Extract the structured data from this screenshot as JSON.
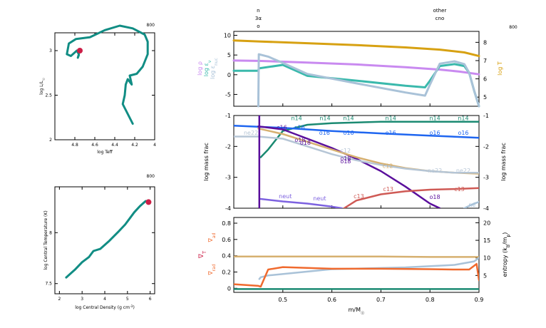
{
  "step_labels": {
    "hr": "800",
    "center": "800",
    "profile": "800"
  },
  "colors": {
    "teal": "#118d84",
    "red": "#cc1f47",
    "gold": "#d7a112",
    "lilac": "#c98af0",
    "lightteal": "#3ab9ac",
    "steel": "#a9c2d8",
    "green": "#1b8a72",
    "blue": "#1f66f0",
    "purple": "#5a0f9c",
    "tan": "#d6b070",
    "grayblue": "#b6c6d6",
    "neut": "#7d62e0",
    "c13": "#cf5a55",
    "orange": "#f06a2e",
    "gridgray": "#8a8a8a"
  },
  "chart_data": [
    {
      "type": "line",
      "id": "hr",
      "xlabel": "log Teff",
      "ylabel": "log L/L",
      "ylabel_sub": "☉",
      "xlim": [
        4.0,
        5.0
      ],
      "ylim": [
        2.0,
        3.2
      ],
      "x_reversed": true,
      "xticks": [
        {
          "v": 4.8,
          "label": "4.8"
        },
        {
          "v": 4.6,
          "label": "4.6"
        },
        {
          "v": 4.4,
          "label": "4.4"
        },
        {
          "v": 4.2,
          "label": "4.2"
        },
        {
          "v": 4.0,
          "label": "4"
        }
      ],
      "yticks": [
        {
          "v": 2.0,
          "label": "2"
        },
        {
          "v": 2.5,
          "label": "2.5"
        },
        {
          "v": 3.0,
          "label": "3"
        }
      ],
      "series": [
        {
          "color": "teal",
          "x": [
            4.22,
            4.32,
            4.3,
            4.29,
            4.27,
            4.23,
            4.25,
            4.18,
            4.12,
            4.07,
            4.07,
            4.1,
            4.22,
            4.35,
            4.5,
            4.65,
            4.79,
            4.86,
            4.88,
            4.84,
            4.78,
            4.76,
            4.77,
            4.76
          ],
          "y": [
            2.18,
            2.4,
            2.5,
            2.62,
            2.68,
            2.62,
            2.72,
            2.74,
            2.82,
            2.96,
            3.1,
            3.18,
            3.25,
            3.28,
            3.23,
            3.15,
            3.13,
            3.08,
            2.96,
            2.94,
            3.0,
            2.96,
            2.92,
            2.95
          ]
        }
      ],
      "marker": {
        "x": 4.75,
        "y": 3.0,
        "color": "red"
      }
    },
    {
      "type": "line",
      "id": "center",
      "xlabel": "log Central Density (g cm",
      "xlabel_sup": "-3",
      "xlabel_end": ")",
      "ylabel": "log Central Temperature (K)",
      "xlim": [
        1.8,
        6.2
      ],
      "ylim": [
        7.4,
        8.45
      ],
      "xticks": [
        {
          "v": 2,
          "label": "2"
        },
        {
          "v": 3,
          "label": "3"
        },
        {
          "v": 4,
          "label": "4"
        },
        {
          "v": 5,
          "label": "5"
        },
        {
          "v": 6,
          "label": "6"
        }
      ],
      "yticks": [
        {
          "v": 7.5,
          "label": "7.5"
        },
        {
          "v": 8.0,
          "label": "8"
        }
      ],
      "series": [
        {
          "color": "teal",
          "x": [
            2.3,
            2.7,
            3.0,
            3.3,
            3.5,
            3.8,
            4.2,
            4.6,
            4.9,
            5.1,
            5.3,
            5.55,
            5.8,
            5.9
          ],
          "y": [
            7.56,
            7.64,
            7.71,
            7.76,
            7.82,
            7.84,
            7.92,
            8.01,
            8.08,
            8.14,
            8.2,
            8.26,
            8.31,
            8.31
          ]
        }
      ],
      "marker": {
        "x": 5.93,
        "y": 8.3,
        "color": "red"
      }
    },
    {
      "type": "line",
      "id": "top",
      "xlim": [
        0.4,
        0.9
      ],
      "ylim": [
        -8,
        11
      ],
      "yticks": [
        {
          "v": 10,
          "label": "10"
        },
        {
          "v": 5,
          "label": "5"
        },
        {
          "v": 0,
          "label": "0"
        },
        {
          "v": -5,
          "label": "-5"
        }
      ],
      "right_ylim": [
        4.5,
        8.6
      ],
      "right_yticks": [
        {
          "v": 8,
          "label": "8"
        },
        {
          "v": 7,
          "label": "7"
        },
        {
          "v": 6,
          "label": "6"
        },
        {
          "v": 5,
          "label": "5"
        }
      ],
      "left_labels": [
        {
          "text": "log ρ",
          "color": "lilac"
        },
        {
          "text": "log ε",
          "sub": "ν",
          "color": "lightteal"
        },
        {
          "text": "log ε",
          "sub": "nuc",
          "color": "steel"
        }
      ],
      "right_label": {
        "text": "log T",
        "color": "gold"
      },
      "top_labels": [
        {
          "x": 0.45,
          "lines": [
            "n",
            "3α",
            "o"
          ]
        },
        {
          "x": 0.82,
          "lines": [
            "other",
            "cno"
          ]
        }
      ],
      "series": [
        {
          "name": "log T",
          "axis": "right",
          "color": "gold",
          "x": [
            0.4,
            0.45,
            0.55,
            0.65,
            0.75,
            0.82,
            0.87,
            0.9
          ],
          "y": [
            8.1,
            8.05,
            7.95,
            7.85,
            7.72,
            7.6,
            7.45,
            7.25
          ]
        },
        {
          "name": "log rho",
          "color": "lilac",
          "x": [
            0.4,
            0.45,
            0.55,
            0.65,
            0.75,
            0.82,
            0.86,
            0.9
          ],
          "y": [
            3.6,
            3.5,
            3.1,
            2.6,
            1.9,
            1.3,
            0.8,
            0.1
          ]
        },
        {
          "name": "log eps_nu",
          "color": "lightteal",
          "x": [
            0.4,
            0.45,
            0.451,
            0.5,
            0.55,
            0.65,
            0.75,
            0.79,
            0.8,
            0.82,
            0.85,
            0.87,
            0.88,
            0.89,
            0.9
          ],
          "y": [
            1.0,
            1.0,
            1.6,
            2.5,
            -0.3,
            -1.5,
            -2.8,
            -3.2,
            -1.5,
            2.2,
            2.7,
            2.2,
            0.5,
            -4,
            -8
          ]
        },
        {
          "name": "log eps_nuc",
          "color": "steel",
          "x": [
            0.45,
            0.451,
            0.47,
            0.5,
            0.55,
            0.65,
            0.75,
            0.79,
            0.8,
            0.82,
            0.85,
            0.87,
            0.88,
            0.89,
            0.9
          ],
          "y": [
            -8,
            5.2,
            4.6,
            3.0,
            0.2,
            -2.2,
            -4.5,
            -5.3,
            -2.5,
            2.8,
            3.4,
            2.7,
            0.5,
            -4,
            -8
          ]
        }
      ]
    },
    {
      "type": "line",
      "id": "mid",
      "xlim": [
        0.4,
        0.9
      ],
      "ylim": [
        -4,
        -1
      ],
      "yticks": [
        {
          "v": -1,
          "label": "-1"
        },
        {
          "v": -2,
          "label": "-2"
        },
        {
          "v": -3,
          "label": "-3"
        },
        {
          "v": -4,
          "label": "-4"
        }
      ],
      "ylabel": "log mass frac",
      "right_ylabel": "log mass frac",
      "series": [
        {
          "name": "n14",
          "color": "green",
          "x": [
            0.455,
            0.47,
            0.5,
            0.55,
            0.6,
            0.7,
            0.8,
            0.9
          ],
          "y": [
            -2.35,
            -2.1,
            -1.5,
            -1.3,
            -1.25,
            -1.2,
            -1.2,
            -1.2
          ]
        },
        {
          "name": "o16",
          "color": "blue",
          "x": [
            0.4,
            0.5,
            0.6,
            0.7,
            0.8,
            0.9
          ],
          "y": [
            -1.33,
            -1.4,
            -1.5,
            -1.58,
            -1.65,
            -1.72
          ]
        },
        {
          "name": "o18",
          "color": "purple",
          "x": [
            0.45,
            0.5,
            0.55,
            0.6,
            0.65,
            0.7,
            0.75,
            0.8,
            0.82
          ],
          "y": [
            -1.35,
            -1.45,
            -1.75,
            -2.05,
            -2.4,
            -2.8,
            -3.3,
            -3.85,
            -4.0
          ]
        },
        {
          "name": "ne22",
          "color": "tan",
          "x": [
            0.45,
            0.5,
            0.55,
            0.6,
            0.65,
            0.7,
            0.75,
            0.8,
            0.85,
            0.9
          ],
          "y": [
            -1.42,
            -1.6,
            -1.85,
            -2.1,
            -2.35,
            -2.55,
            -2.7,
            -2.8,
            -2.85,
            -2.88
          ]
        },
        {
          "name": "c12",
          "color": "grayblue",
          "x": [
            0.4,
            0.45,
            0.5,
            0.55,
            0.6,
            0.65,
            0.7,
            0.75,
            0.8,
            0.85,
            0.9
          ],
          "y": [
            -1.68,
            -1.68,
            -1.75,
            -2.0,
            -2.25,
            -2.45,
            -2.6,
            -2.72,
            -2.8,
            -2.85,
            -2.85
          ]
        },
        {
          "name": "neut",
          "color": "neut",
          "x": [
            0.455,
            0.5,
            0.55,
            0.6,
            0.62
          ],
          "y": [
            -3.7,
            -3.78,
            -3.85,
            -3.95,
            -4.0
          ]
        },
        {
          "name": "c13",
          "color": "c13",
          "x": [
            0.625,
            0.65,
            0.7,
            0.75,
            0.8,
            0.85,
            0.9
          ],
          "y": [
            -4.0,
            -3.75,
            -3.55,
            -3.45,
            -3.4,
            -3.38,
            -3.35
          ]
        },
        {
          "name": "he4-edge",
          "color": "purple",
          "x": [
            0.452,
            0.452
          ],
          "y": [
            -4.0,
            -1.0
          ]
        },
        {
          "name": "ne20",
          "color": "steel",
          "x": [
            0.87,
            0.89,
            0.9
          ],
          "y": [
            -4.0,
            -3.85,
            -3.8
          ]
        }
      ],
      "labels": [
        {
          "text": "n14",
          "x": 0.528,
          "y": -1.15,
          "color": "green"
        },
        {
          "text": "n14",
          "x": 0.586,
          "y": -1.15,
          "color": "green"
        },
        {
          "text": "n14",
          "x": 0.634,
          "y": -1.15,
          "color": "green"
        },
        {
          "text": "n14",
          "x": 0.72,
          "y": -1.15,
          "color": "green"
        },
        {
          "text": "n14",
          "x": 0.81,
          "y": -1.15,
          "color": "green"
        },
        {
          "text": "n14",
          "x": 0.868,
          "y": -1.15,
          "color": "green"
        },
        {
          "text": "c16",
          "x": 0.498,
          "y": -1.45,
          "color": "purple"
        },
        {
          "text": "o16",
          "x": 0.534,
          "y": -1.45,
          "color": "blue"
        },
        {
          "text": "o16",
          "x": 0.585,
          "y": -1.62,
          "color": "blue"
        },
        {
          "text": "o16",
          "x": 0.634,
          "y": -1.62,
          "color": "blue"
        },
        {
          "text": "o16",
          "x": 0.72,
          "y": -1.62,
          "color": "blue"
        },
        {
          "text": "o16",
          "x": 0.81,
          "y": -1.62,
          "color": "blue"
        },
        {
          "text": "o16",
          "x": 0.868,
          "y": -1.62,
          "color": "blue"
        },
        {
          "text": "ne22",
          "x": 0.435,
          "y": -1.62,
          "color": "grayblue"
        },
        {
          "text": "o18",
          "x": 0.535,
          "y": -1.85,
          "color": "purple"
        },
        {
          "text": "o18",
          "x": 0.546,
          "y": -1.95,
          "color": "purple"
        },
        {
          "text": "o18",
          "x": 0.628,
          "y": -2.45,
          "color": "purple"
        },
        {
          "text": "o18",
          "x": 0.628,
          "y": -2.55,
          "color": "purple"
        },
        {
          "text": "c12",
          "x": 0.714,
          "y": -2.7,
          "color": "tan"
        },
        {
          "text": "c12",
          "x": 0.628,
          "y": -2.2,
          "color": "grayblue"
        },
        {
          "text": "ne22",
          "x": 0.81,
          "y": -2.85,
          "color": "grayblue"
        },
        {
          "text": "ne22",
          "x": 0.868,
          "y": -2.85,
          "color": "grayblue"
        },
        {
          "text": "neut",
          "x": 0.505,
          "y": -3.68,
          "color": "neut"
        },
        {
          "text": "neut",
          "x": 0.575,
          "y": -3.75,
          "color": "neut"
        },
        {
          "text": "c13",
          "x": 0.655,
          "y": -3.68,
          "color": "c13"
        },
        {
          "text": "c13",
          "x": 0.715,
          "y": -3.45,
          "color": "c13"
        },
        {
          "text": "c13",
          "x": 0.86,
          "y": -3.45,
          "color": "c13"
        },
        {
          "text": "o18",
          "x": 0.81,
          "y": -3.7,
          "color": "purple"
        },
        {
          "text": "ne",
          "x": 0.886,
          "y": -3.95,
          "color": "steel"
        }
      ]
    },
    {
      "type": "line",
      "id": "bottom",
      "xlim": [
        0.4,
        0.9
      ],
      "ylim": [
        -0.05,
        0.87
      ],
      "xticks": [
        {
          "v": 0.5,
          "label": "0.5"
        },
        {
          "v": 0.6,
          "label": "0.6"
        },
        {
          "v": 0.7,
          "label": "0.7"
        },
        {
          "v": 0.8,
          "label": "0.8"
        },
        {
          "v": 0.9,
          "label": "0.9"
        }
      ],
      "yticks": [
        {
          "v": 0.8,
          "label": "0.8"
        },
        {
          "v": 0.6,
          "label": "0.6"
        },
        {
          "v": 0.4,
          "label": "0.4"
        },
        {
          "v": 0.2,
          "label": "0.2"
        },
        {
          "v": 0.0,
          "label": "0"
        }
      ],
      "right_ylim": [
        0.2,
        21.5
      ],
      "right_yticks": [
        {
          "v": 20,
          "label": "20"
        },
        {
          "v": 15,
          "label": "15"
        },
        {
          "v": 10,
          "label": "10"
        },
        {
          "v": 5,
          "label": "5"
        }
      ],
      "xlabel": "m/M",
      "xlabel_sub": "☉",
      "left_label_nabla": "∇",
      "left_label_sub": "T",
      "left_label_ad": "∇",
      "left_label_ad_sub": "ad",
      "left_label_rad": "∇",
      "left_label_rad_sub": "rad",
      "right_label": "entropy (k",
      "right_label_sub1": "B",
      "right_label_mid": "/m",
      "right_label_sub2": "p",
      "right_label_end": ")",
      "series": [
        {
          "name": "grad_ad",
          "color": "tan",
          "x": [
            0.4,
            0.5,
            0.6,
            0.7,
            0.8,
            0.89,
            0.9
          ],
          "y": [
            0.39,
            0.39,
            0.39,
            0.39,
            0.385,
            0.385,
            0.385
          ]
        },
        {
          "name": "entropy",
          "axis": "right",
          "color": "steel",
          "x": [
            0.452,
            0.455,
            0.47,
            0.6,
            0.75,
            0.85,
            0.89,
            0.9
          ],
          "y": [
            4.0,
            4.5,
            5.0,
            6.8,
            7.3,
            8.0,
            9.0,
            10.0
          ]
        },
        {
          "name": "grad_rad",
          "color": "orange",
          "x": [
            0.4,
            0.45,
            0.455,
            0.47,
            0.5,
            0.6,
            0.7,
            0.8,
            0.85,
            0.88,
            0.895,
            0.9
          ],
          "y": [
            0.05,
            0.03,
            0.02,
            0.23,
            0.26,
            0.24,
            0.24,
            0.235,
            0.23,
            0.23,
            0.3,
            0.1
          ]
        },
        {
          "name": "grad_T",
          "color": "green",
          "x": [
            0.4,
            0.9
          ],
          "y": [
            -0.01,
            -0.01
          ]
        }
      ]
    }
  ]
}
